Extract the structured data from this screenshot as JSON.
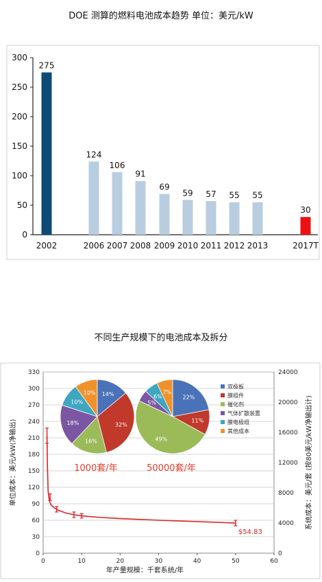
{
  "header": {
    "title1": "DOE 测算的燃料电池成本趋势 单位：美元/kW",
    "title2": "不同生产规模下的电池成本及拆分"
  },
  "chart_data": [
    {
      "type": "bar",
      "categories": [
        "2002",
        "2006",
        "2007",
        "2008",
        "2009",
        "2010",
        "2011",
        "2012",
        "2013",
        "2017T"
      ],
      "values": [
        275,
        124,
        106,
        91,
        69,
        59,
        57,
        55,
        55,
        30
      ],
      "ylim": [
        0,
        300
      ],
      "yticks": [
        0,
        50,
        100,
        150,
        200,
        250,
        300
      ],
      "colors": {
        "2002": "#0d4a76",
        "default": "#b9cde0",
        "2017T": "#ee1111"
      },
      "grid": false
    },
    {
      "type": "line",
      "title": "",
      "xlabel": "年产量规模：千套系统/年",
      "ylabel": "单位成本：美元/kW(净输出)",
      "y2label": "系统成本：美元/套 (按80美元/kW净输出计)",
      "xlim": [
        0,
        60
      ],
      "xticks": [
        0,
        10,
        20,
        30,
        40,
        50,
        60
      ],
      "ylim": [
        0,
        330
      ],
      "yticks": [
        0,
        30,
        60,
        90,
        120,
        150,
        180,
        210,
        240,
        270,
        300,
        330
      ],
      "y2lim": [
        0,
        24000
      ],
      "y2ticks": [
        0,
        4000,
        8000,
        12000,
        16000,
        20000,
        24000
      ],
      "grid": true,
      "line_color": "#dd2222",
      "curve": {
        "x": [
          1,
          1.1,
          1.3,
          1.6,
          2,
          3,
          4,
          6,
          8,
          10,
          15,
          20,
          30,
          40,
          50
        ],
        "y": [
          214,
          160,
          112,
          96,
          88,
          82,
          78,
          73,
          70,
          68,
          65,
          63,
          60,
          57.5,
          54.83
        ]
      },
      "error_points": [
        {
          "x": 1,
          "y": 214,
          "err": 14
        },
        {
          "x": 1.8,
          "y": 102,
          "err": 6
        },
        {
          "x": 3.5,
          "y": 80,
          "err": 5
        },
        {
          "x": 8,
          "y": 70,
          "err": 5
        },
        {
          "x": 10,
          "y": 68,
          "err": 4
        },
        {
          "x": 50,
          "y": 54.83,
          "err": 5
        }
      ],
      "end_label": "$54.83",
      "pies": [
        {
          "label": "1000套/年",
          "slices": [
            {
              "name": "双极板",
              "value": 14,
              "label": "14%",
              "color": "#4a72b8"
            },
            {
              "name": "膜组件",
              "value": 32,
              "label": "32%",
              "color": "#c0392b"
            },
            {
              "name": "催化剂",
              "value": 16,
              "label": "16%",
              "color": "#9bbb59"
            },
            {
              "name": "气体扩散装置",
              "value": 18,
              "label": "18%",
              "color": "#7b57a3"
            },
            {
              "name": "膜电极组",
              "value": 10,
              "label": "10%",
              "color": "#3fa6c0"
            },
            {
              "name": "其他成本",
              "value": 10,
              "label": "10%",
              "color": "#f0922b"
            }
          ]
        },
        {
          "label": "50000套/年",
          "slices": [
            {
              "name": "双极板",
              "value": 22,
              "label": "22%",
              "color": "#4a72b8"
            },
            {
              "name": "膜组件",
              "value": 11,
              "label": "11%",
              "color": "#c0392b"
            },
            {
              "name": "催化剂",
              "value": 49,
              "label": "49%",
              "color": "#9bbb59"
            },
            {
              "name": "气体扩散装置",
              "value": 5,
              "label": "5%",
              "color": "#7b57a3"
            },
            {
              "name": "膜电极组",
              "value": 6,
              "label": "6%",
              "color": "#3fa6c0"
            },
            {
              "name": "其他成本",
              "value": 7,
              "label": "7%",
              "color": "#f0922b"
            }
          ]
        }
      ],
      "legend": [
        "双极板",
        "膜组件",
        "催化剂",
        "气体扩散装置",
        "膜电极组",
        "其他成本"
      ]
    }
  ]
}
